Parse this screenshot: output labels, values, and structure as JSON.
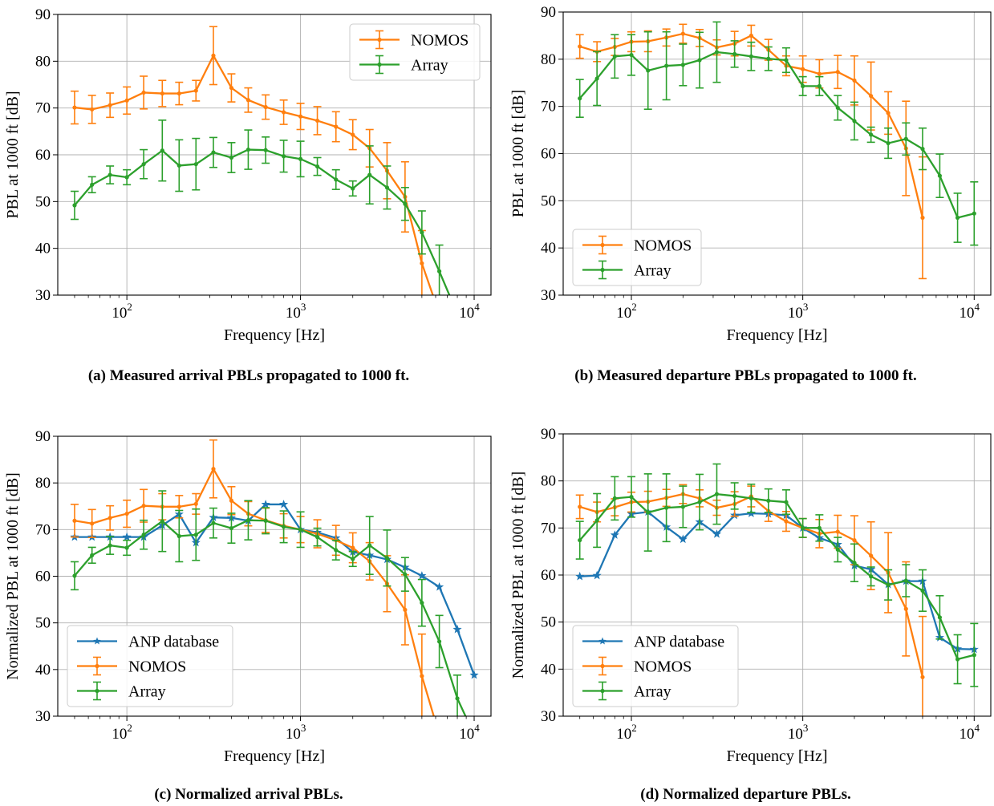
{
  "colors": {
    "anp": "#1f77b4",
    "nomos": "#ff7f0e",
    "array": "#2ca02c",
    "grid": "#b0b0b0",
    "axis": "#000000"
  },
  "captions": [
    "(a) Measured arrival PBLs propagated to 1000 ft.",
    "(b) Measured departure PBLs propagated to 1000 ft.",
    "(c) Normalized arrival PBLs.",
    "(d) Normalized departure PBLs."
  ],
  "chart_data": [
    {
      "type": "line",
      "xscale": "log",
      "xlim": [
        40,
        12500
      ],
      "ylim": [
        30,
        90
      ],
      "xlabel": "Frequency [Hz]",
      "ylabel": "PBL at 1000 ft [dB]",
      "xticks": [
        {
          "value": 100,
          "label": "10",
          "sup": "2"
        },
        {
          "value": 1000,
          "label": "10",
          "sup": "3"
        },
        {
          "value": 10000,
          "label": "10",
          "sup": "4"
        }
      ],
      "yticks": [
        30,
        40,
        50,
        60,
        70,
        80,
        90
      ],
      "grid": true,
      "legend": "upper right",
      "series": [
        {
          "name": "NOMOS",
          "color": "#ff7f0e",
          "marker": "dot",
          "x": [
            50,
            63,
            80,
            100,
            125,
            160,
            200,
            250,
            315,
            400,
            500,
            630,
            800,
            1000,
            1250,
            1600,
            2000,
            2500,
            3150,
            4000,
            5000,
            6300,
            8000,
            10000
          ],
          "y": [
            70.1,
            69.7,
            70.6,
            71.6,
            73.3,
            73.1,
            73.1,
            73.7,
            81.2,
            74.3,
            71.7,
            70.2,
            69.1,
            68.2,
            67.3,
            66.0,
            64.3,
            61.4,
            56.6,
            51.0,
            36.8,
            22.0,
            null,
            null
          ],
          "err": [
            3.5,
            3.0,
            2.6,
            2.9,
            3.5,
            2.8,
            2.4,
            2.2,
            6.2,
            3.0,
            2.6,
            2.6,
            2.6,
            2.8,
            3.0,
            3.2,
            3.2,
            4.0,
            6.0,
            7.5,
            7.0,
            0,
            0,
            0
          ]
        },
        {
          "name": "Array",
          "color": "#2ca02c",
          "marker": "dot",
          "x": [
            50,
            63,
            80,
            100,
            125,
            160,
            200,
            250,
            315,
            400,
            500,
            630,
            800,
            1000,
            1250,
            1600,
            2000,
            2500,
            3150,
            4000,
            5000,
            6300,
            8000,
            10000
          ],
          "y": [
            49.2,
            53.6,
            55.7,
            55.2,
            58.0,
            60.9,
            57.7,
            58.0,
            60.5,
            59.4,
            61.1,
            61.0,
            59.7,
            59.1,
            57.5,
            54.7,
            52.8,
            55.7,
            53.0,
            49.5,
            43.4,
            35.1,
            22.0,
            null
          ],
          "err": [
            3.0,
            1.7,
            1.9,
            1.6,
            3.1,
            6.5,
            5.5,
            5.5,
            3.2,
            3.2,
            4.2,
            2.8,
            3.4,
            3.8,
            1.9,
            2.1,
            1.6,
            6.2,
            4.6,
            3.5,
            4.6,
            5.6,
            0,
            0
          ]
        }
      ]
    },
    {
      "type": "line",
      "xscale": "log",
      "xlim": [
        40,
        12500
      ],
      "ylim": [
        30,
        90
      ],
      "xlabel": "Frequency [Hz]",
      "ylabel": "PBL at 1000 ft [dB]",
      "xticks": [
        {
          "value": 100,
          "label": "10",
          "sup": "2"
        },
        {
          "value": 1000,
          "label": "10",
          "sup": "3"
        },
        {
          "value": 10000,
          "label": "10",
          "sup": "4"
        }
      ],
      "yticks": [
        30,
        40,
        50,
        60,
        70,
        80,
        90
      ],
      "grid": true,
      "legend": "lower left",
      "series": [
        {
          "name": "NOMOS",
          "color": "#ff7f0e",
          "marker": "dot",
          "x": [
            50,
            63,
            80,
            100,
            125,
            160,
            200,
            250,
            315,
            400,
            500,
            630,
            800,
            1000,
            1250,
            1600,
            2000,
            2500,
            3150,
            4000,
            5000
          ],
          "y": [
            82.7,
            81.6,
            82.6,
            83.7,
            83.8,
            84.6,
            85.4,
            84.5,
            82.5,
            83.3,
            85.0,
            82.0,
            78.6,
            77.9,
            76.9,
            77.3,
            75.5,
            72.2,
            68.6,
            61.1,
            46.4
          ],
          "err": [
            2.5,
            2.1,
            1.8,
            2.1,
            2.2,
            1.8,
            2.0,
            1.8,
            1.6,
            2.6,
            2.2,
            2.2,
            2.1,
            2.8,
            3.0,
            3.5,
            5.2,
            7.2,
            4.5,
            10.0,
            12.9
          ]
        },
        {
          "name": "Array",
          "color": "#2ca02c",
          "marker": "dot",
          "x": [
            50,
            63,
            80,
            100,
            125,
            160,
            200,
            250,
            315,
            400,
            500,
            630,
            800,
            1000,
            1250,
            1600,
            2000,
            2500,
            3150,
            4000,
            5000,
            6300,
            8000,
            10000
          ],
          "y": [
            71.7,
            75.9,
            80.6,
            80.9,
            77.6,
            78.6,
            78.8,
            79.8,
            81.5,
            81.1,
            80.6,
            80.1,
            79.8,
            74.3,
            74.3,
            69.7,
            66.9,
            64.0,
            62.2,
            63.1,
            61.0,
            55.3,
            46.4,
            47.3
          ],
          "err": [
            4.0,
            5.7,
            4.6,
            4.3,
            8.2,
            7.2,
            4.4,
            5.9,
            6.4,
            2.8,
            3.0,
            2.5,
            2.6,
            2.0,
            2.0,
            2.6,
            4.0,
            1.6,
            3.2,
            3.4,
            4.4,
            4.6,
            5.2,
            6.7
          ]
        }
      ]
    },
    {
      "type": "line",
      "xscale": "log",
      "xlim": [
        40,
        12500
      ],
      "ylim": [
        30,
        90
      ],
      "xlabel": "Frequency [Hz]",
      "ylabel": "Normalized PBL at 1000 ft [dB]",
      "xticks": [
        {
          "value": 100,
          "label": "10",
          "sup": "2"
        },
        {
          "value": 1000,
          "label": "10",
          "sup": "3"
        },
        {
          "value": 10000,
          "label": "10",
          "sup": "4"
        }
      ],
      "yticks": [
        30,
        40,
        50,
        60,
        70,
        80,
        90
      ],
      "grid": true,
      "legend": "lower left",
      "series": [
        {
          "name": "ANP database",
          "color": "#1f77b4",
          "marker": "star",
          "x": [
            50,
            63,
            80,
            100,
            125,
            160,
            200,
            250,
            315,
            400,
            500,
            630,
            800,
            1000,
            1250,
            1600,
            2000,
            2500,
            3150,
            4000,
            5000,
            6300,
            8000,
            10000
          ],
          "y": [
            68.4,
            68.4,
            68.4,
            68.4,
            68.4,
            70.9,
            73.3,
            67.2,
            72.6,
            72.5,
            71.9,
            75.4,
            75.4,
            70.0,
            69.4,
            68.2,
            65.2,
            64.5,
            63.6,
            61.9,
            60.1,
            57.7,
            48.6,
            38.8
          ],
          "err": null
        },
        {
          "name": "NOMOS",
          "color": "#ff7f0e",
          "marker": "dot",
          "x": [
            50,
            63,
            80,
            100,
            125,
            160,
            200,
            250,
            315,
            400,
            500,
            630,
            800,
            1000,
            1250,
            1600,
            2000,
            2500,
            3150,
            4000,
            5000,
            6300,
            8000,
            10000
          ],
          "y": [
            71.9,
            71.3,
            72.5,
            73.4,
            75.1,
            74.9,
            74.9,
            75.5,
            83.0,
            76.2,
            73.4,
            72.0,
            70.8,
            70.0,
            69.1,
            67.7,
            66.1,
            63.2,
            58.4,
            52.8,
            38.6,
            22.0,
            null,
            null
          ],
          "err": [
            3.5,
            3.0,
            2.6,
            2.9,
            3.5,
            2.8,
            2.4,
            2.2,
            6.2,
            3.0,
            2.6,
            2.6,
            2.6,
            2.8,
            3.0,
            3.2,
            3.2,
            4.0,
            6.0,
            7.5,
            9.0,
            0,
            0,
            0
          ]
        },
        {
          "name": "Array",
          "color": "#2ca02c",
          "marker": "dot",
          "x": [
            50,
            63,
            80,
            100,
            125,
            160,
            200,
            250,
            315,
            400,
            500,
            630,
            800,
            1000,
            1250,
            1600,
            2000,
            2500,
            3150,
            4000,
            5000,
            6300,
            8000,
            10000
          ],
          "y": [
            60.1,
            64.5,
            66.6,
            66.1,
            68.9,
            71.8,
            68.6,
            68.9,
            71.4,
            70.3,
            72.0,
            71.9,
            70.6,
            70.0,
            68.4,
            65.6,
            63.7,
            66.6,
            63.9,
            60.4,
            54.3,
            46.0,
            33.8,
            22.0
          ],
          "err": [
            3.0,
            1.7,
            1.9,
            1.6,
            3.1,
            6.5,
            5.5,
            5.5,
            3.2,
            3.2,
            4.2,
            2.8,
            3.4,
            3.8,
            1.9,
            2.1,
            1.6,
            6.2,
            6.0,
            3.6,
            5.0,
            5.6,
            5.0,
            0
          ]
        }
      ]
    },
    {
      "type": "line",
      "xscale": "log",
      "xlim": [
        40,
        12500
      ],
      "ylim": [
        30,
        90
      ],
      "xlabel": "Frequency [Hz]",
      "ylabel": "Normalized PBL at 1000 ft [dB]",
      "xticks": [
        {
          "value": 100,
          "label": "10",
          "sup": "2"
        },
        {
          "value": 1000,
          "label": "10",
          "sup": "3"
        },
        {
          "value": 10000,
          "label": "10",
          "sup": "4"
        }
      ],
      "yticks": [
        30,
        40,
        50,
        60,
        70,
        80,
        90
      ],
      "grid": true,
      "legend": "lower left",
      "series": [
        {
          "name": "ANP database",
          "color": "#1f77b4",
          "marker": "star",
          "x": [
            50,
            63,
            80,
            100,
            125,
            160,
            200,
            250,
            315,
            400,
            500,
            630,
            800,
            1000,
            1250,
            1600,
            2000,
            2500,
            3150,
            4000,
            5000,
            6300,
            8000,
            10000
          ],
          "y": [
            59.7,
            59.9,
            68.5,
            73.0,
            73.4,
            70.2,
            67.6,
            71.3,
            68.7,
            72.7,
            73.1,
            73.0,
            72.7,
            70.0,
            67.9,
            66.5,
            62.0,
            61.2,
            58.0,
            58.7,
            58.7,
            46.7,
            44.3,
            44.2
          ],
          "err": null
        },
        {
          "name": "NOMOS",
          "color": "#ff7f0e",
          "marker": "dot",
          "x": [
            50,
            63,
            80,
            100,
            125,
            160,
            200,
            250,
            315,
            400,
            500,
            630,
            800,
            1000,
            1250,
            1600,
            2000,
            2500,
            3150,
            4000,
            5000
          ],
          "y": [
            74.5,
            73.4,
            74.4,
            75.5,
            75.6,
            76.4,
            77.2,
            76.3,
            74.3,
            75.1,
            76.7,
            73.6,
            71.4,
            70.0,
            68.8,
            69.2,
            67.4,
            64.1,
            60.5,
            52.8,
            38.3
          ],
          "err": [
            2.5,
            2.1,
            1.8,
            2.1,
            2.2,
            1.8,
            2.0,
            1.8,
            1.6,
            2.6,
            2.2,
            2.2,
            2.1,
            2.0,
            3.0,
            3.5,
            5.2,
            7.2,
            8.5,
            10.0,
            12.9
          ]
        },
        {
          "name": "Array",
          "color": "#2ca02c",
          "marker": "dot",
          "x": [
            50,
            63,
            80,
            100,
            125,
            160,
            200,
            250,
            315,
            400,
            500,
            630,
            800,
            1000,
            1250,
            1600,
            2000,
            2500,
            3150,
            4000,
            5000,
            6300,
            8000,
            10000
          ],
          "y": [
            67.4,
            71.6,
            76.3,
            76.6,
            73.3,
            74.3,
            74.5,
            75.5,
            77.2,
            76.8,
            76.3,
            75.8,
            75.5,
            70.0,
            70.0,
            65.4,
            62.6,
            59.7,
            57.9,
            58.8,
            56.7,
            51.0,
            42.1,
            43.0
          ],
          "err": [
            4.0,
            5.7,
            4.6,
            4.3,
            8.2,
            7.2,
            4.4,
            5.9,
            6.4,
            2.8,
            3.0,
            2.5,
            2.6,
            2.0,
            2.8,
            2.6,
            4.0,
            2.0,
            3.2,
            3.4,
            4.4,
            4.6,
            5.2,
            6.7
          ]
        }
      ]
    }
  ]
}
